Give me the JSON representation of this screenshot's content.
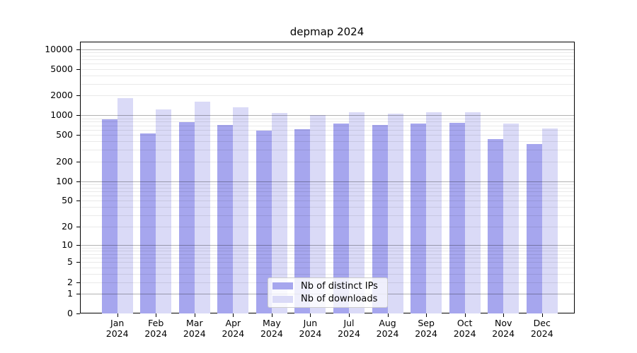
{
  "title": "depmap 2024",
  "legend": {
    "items": [
      {
        "label": "Nb of distinct IPs",
        "color": "#a6a6ee"
      },
      {
        "label": "Nb of downloads",
        "color": "#dadaf7"
      }
    ]
  },
  "chart_data": {
    "type": "bar",
    "title": "depmap 2024",
    "categories": [
      "Jan",
      "Feb",
      "Mar",
      "Apr",
      "May",
      "Jun",
      "Jul",
      "Aug",
      "Sep",
      "Oct",
      "Nov",
      "Dec"
    ],
    "year_label": "2024",
    "series": [
      {
        "name": "Nb of distinct IPs",
        "color": "#a6a6ee",
        "values": [
          860,
          530,
          790,
          720,
          580,
          610,
          740,
          710,
          750,
          760,
          440,
          370
        ]
      },
      {
        "name": "Nb of downloads",
        "color": "#dadaf7",
        "values": [
          1800,
          1230,
          1610,
          1330,
          1080,
          1000,
          1100,
          1050,
          1110,
          1110,
          750,
          630
        ]
      }
    ],
    "xlabel": "",
    "ylabel": "",
    "yscale": "log(v+1) with zero shown",
    "y_ticks": [
      10000,
      5000,
      2000,
      1000,
      500,
      200,
      100,
      50,
      20,
      10,
      5,
      2,
      1,
      0
    ],
    "ylim": [
      0,
      13000
    ],
    "grid": true,
    "grid_minor": true,
    "legend_position": "lower center inside plot"
  }
}
